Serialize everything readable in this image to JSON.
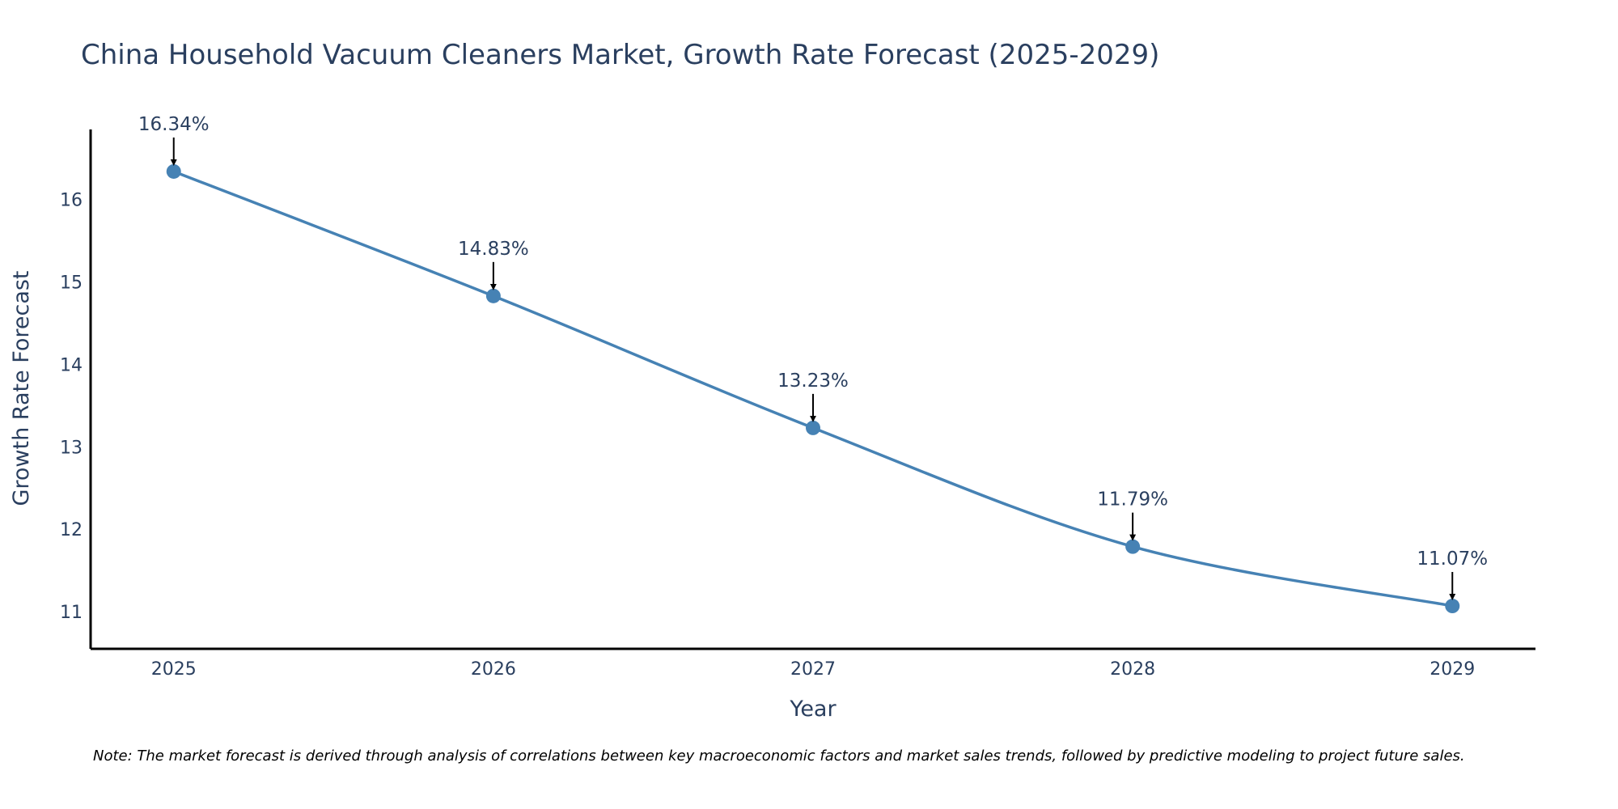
{
  "chart_data": {
    "type": "line",
    "title": "China Household Vacuum Cleaners Market, Growth Rate Forecast (2025-2029)",
    "xlabel": "Year",
    "ylabel": "Growth Rate Forecast",
    "categories": [
      "2025",
      "2026",
      "2027",
      "2028",
      "2029"
    ],
    "series": [
      {
        "name": "Growth Rate Forecast",
        "values": [
          16.34,
          14.83,
          13.23,
          11.79,
          11.07
        ],
        "labels": [
          "16.34%",
          "14.83%",
          "13.23%",
          "11.79%",
          "11.07%"
        ]
      }
    ],
    "ylim": [
      10.55,
      16.85
    ],
    "yticks": [
      11,
      12,
      13,
      14,
      15,
      16
    ],
    "xlim": [
      -0.26,
      4.26
    ],
    "grid": false,
    "line_shape": "spline",
    "line_color": "#4682b4",
    "marker_color": "#4682b4",
    "annotation_arrow_color": "#000000",
    "axis_color": "#000000",
    "text_color": "#2a3f5f",
    "note": "Note: The market forecast is derived through analysis of correlations between key macroeconomic factors and market sales trends, followed by predictive modeling to project future sales."
  }
}
